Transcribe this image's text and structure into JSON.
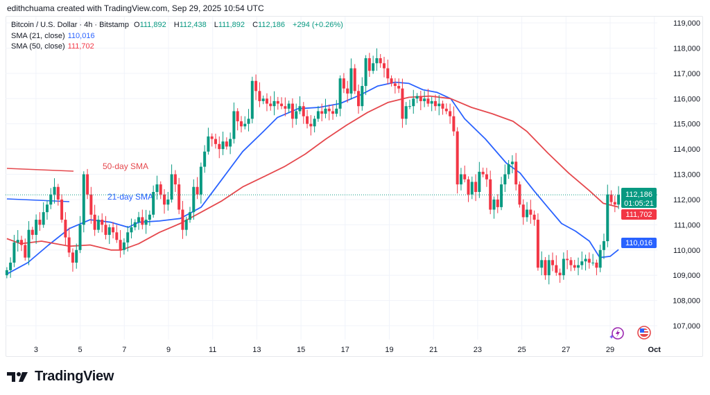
{
  "credit": "edithchuama created with TradingView.com, Sep 29, 2025 10:54 UTC",
  "legend": {
    "symbol": "Bitcoin / U.S. Dollar · 4h · Bitstamp",
    "o_label": "O",
    "o": "111,892",
    "h_label": "H",
    "h": "112,438",
    "l_label": "L",
    "l": "111,892",
    "c_label": "C",
    "c": "112,186",
    "change": "+294 (+0.26%)",
    "sma21_label": "SMA (21, close)",
    "sma21": "110,016",
    "sma50_label": "SMA (50, close)",
    "sma50": "111,702"
  },
  "logo_text": "TradingView",
  "colors": {
    "up": "#089981",
    "down": "#f23645",
    "sma21": "#2962ff",
    "sma50": "#e5484d"
  },
  "icons": [
    "lightning-event-icon",
    "us-flag-economic-event-icon"
  ],
  "chart_data": {
    "type": "candlestick",
    "interval": "4h",
    "ylim": [
      107000,
      119000
    ],
    "y_ticks": [
      "107,000",
      "108,000",
      "109,000",
      "110,000",
      "111,000",
      "112,000",
      "113,000",
      "114,000",
      "115,000",
      "116,000",
      "117,000",
      "118,000",
      "119,000"
    ],
    "x_ticks": [
      {
        "label": "3",
        "day": 3
      },
      {
        "label": "5",
        "day": 5
      },
      {
        "label": "7",
        "day": 7
      },
      {
        "label": "9",
        "day": 9
      },
      {
        "label": "11",
        "day": 11
      },
      {
        "label": "13",
        "day": 13
      },
      {
        "label": "15",
        "day": 15
      },
      {
        "label": "17",
        "day": 17
      },
      {
        "label": "19",
        "day": 19
      },
      {
        "label": "21",
        "day": 21
      },
      {
        "label": "23",
        "day": 23
      },
      {
        "label": "25",
        "day": 25
      },
      {
        "label": "27",
        "day": 27
      },
      {
        "label": "29",
        "day": 29
      },
      {
        "label": "Oct",
        "day": 31
      }
    ],
    "grid": true,
    "candle_day_range": [
      1.68,
      29.38
    ],
    "closes": [
      109200,
      109500,
      110300,
      110400,
      110200,
      109700,
      110800,
      110600,
      111200,
      111000,
      111500,
      111800,
      112200,
      112500,
      112000,
      111200,
      110500,
      109900,
      109500,
      110000,
      111000,
      113000,
      112200,
      111400,
      110800,
      111200,
      111000,
      110600,
      110900,
      110700,
      110400,
      110000,
      110300,
      110700,
      110900,
      111100,
      111300,
      111000,
      111200,
      111400,
      112300,
      112600,
      112200,
      111800,
      112000,
      113000,
      112600,
      111600,
      110800,
      111200,
      111500,
      112500,
      112200,
      113300,
      113900,
      114500,
      114400,
      114200,
      114000,
      114300,
      114100,
      114400,
      115500,
      115100,
      114900,
      115000,
      115200,
      116700,
      116300,
      115900,
      116000,
      115800,
      115700,
      115900,
      115800,
      115700,
      115600,
      115800,
      115200,
      115500,
      115700,
      115300,
      115000,
      114900,
      115200,
      115500,
      115400,
      115600,
      115500,
      115400,
      115600,
      116800,
      116400,
      116200,
      117200,
      116300,
      115700,
      116500,
      117600,
      117100,
      117400,
      117600,
      117400,
      117200,
      116800,
      116600,
      116500,
      116400,
      115200,
      115700,
      115700,
      116000,
      116100,
      115900,
      116000,
      115800,
      115900,
      115700,
      115800,
      115600,
      115500,
      115300,
      114700,
      112600,
      113000,
      112800,
      112200,
      112700,
      112300,
      113100,
      113000,
      112800,
      111600,
      112000,
      111700,
      112600,
      113000,
      113400,
      113500,
      112600,
      111800,
      111300,
      111600,
      111400,
      111200,
      109300,
      109600,
      109000,
      109600,
      109400,
      109100,
      109000,
      109650,
      109600,
      109400,
      109300,
      109400,
      109550,
      109650,
      109500,
      109500,
      109300,
      110000,
      110350,
      112200,
      111900,
      111800,
      112186
    ],
    "series": [
      {
        "name": "SMA (21, close)",
        "points": [
          [
            1.68,
            109050
          ],
          [
            2.63,
            109500
          ],
          [
            3.57,
            110200
          ],
          [
            4.51,
            110850
          ],
          [
            5.45,
            111200
          ],
          [
            6.39,
            111100
          ],
          [
            7.18,
            110900
          ],
          [
            7.65,
            111100
          ],
          [
            8.59,
            111150
          ],
          [
            9.53,
            111250
          ],
          [
            10.48,
            111700
          ],
          [
            11.42,
            112800
          ],
          [
            12.36,
            113900
          ],
          [
            13.3,
            114700
          ],
          [
            13.93,
            115250
          ],
          [
            14.87,
            115600
          ],
          [
            15.81,
            115650
          ],
          [
            16.76,
            115800
          ],
          [
            17.7,
            116150
          ],
          [
            18.48,
            116500
          ],
          [
            19.27,
            116650
          ],
          [
            19.89,
            116600
          ],
          [
            20.52,
            116350
          ],
          [
            21.15,
            116250
          ],
          [
            21.78,
            116000
          ],
          [
            22.41,
            115200
          ],
          [
            23.35,
            114400
          ],
          [
            24.29,
            113450
          ],
          [
            24.92,
            113050
          ],
          [
            25.55,
            112350
          ],
          [
            26.17,
            111700
          ],
          [
            26.8,
            111050
          ],
          [
            27.43,
            110750
          ],
          [
            28.06,
            110350
          ],
          [
            28.53,
            109700
          ],
          [
            29.0,
            109750
          ],
          [
            29.38,
            110016
          ]
        ]
      },
      {
        "name": "SMA (50, close)",
        "points": [
          [
            1.68,
            110450
          ],
          [
            2.31,
            110250
          ],
          [
            3.25,
            110350
          ],
          [
            4.51,
            110150
          ],
          [
            5.45,
            110200
          ],
          [
            6.39,
            110000
          ],
          [
            6.86,
            110000
          ],
          [
            7.65,
            110250
          ],
          [
            8.59,
            110700
          ],
          [
            9.53,
            111050
          ],
          [
            10.48,
            111500
          ],
          [
            11.42,
            111950
          ],
          [
            12.36,
            112500
          ],
          [
            13.3,
            112900
          ],
          [
            14.24,
            113300
          ],
          [
            15.19,
            113800
          ],
          [
            16.13,
            114400
          ],
          [
            17.07,
            114950
          ],
          [
            18.01,
            115450
          ],
          [
            18.95,
            115850
          ],
          [
            19.89,
            116050
          ],
          [
            20.84,
            116100
          ],
          [
            21.78,
            116000
          ],
          [
            22.72,
            115650
          ],
          [
            23.66,
            115400
          ],
          [
            24.6,
            115100
          ],
          [
            25.23,
            114700
          ],
          [
            26.17,
            113850
          ],
          [
            27.12,
            113050
          ],
          [
            28.06,
            112350
          ],
          [
            28.69,
            111850
          ],
          [
            29.38,
            111702
          ]
        ]
      }
    ],
    "annotations": {
      "sma50_note": "50-day SMA",
      "sma21_note": "21-day SMA"
    },
    "price_labels": {
      "last": "112,186",
      "countdown": "01:05:21",
      "sma50": "111,702",
      "sma21": "110,016"
    }
  }
}
